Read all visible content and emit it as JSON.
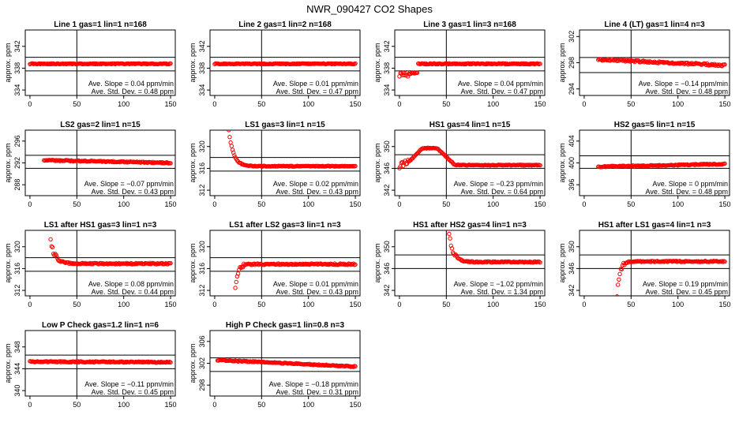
{
  "page_title": "NWR_090427  CO2 Shapes",
  "ylabel": "approx. ppm",
  "xticks": [
    0,
    50,
    100,
    150
  ],
  "colors": {
    "points": "#ff0000",
    "lines": "#000000"
  },
  "panels": [
    {
      "title": "Line 1 gas=1 lin=1 n=168",
      "yticks": [
        334,
        338,
        342
      ],
      "yrange": [
        333,
        345
      ],
      "hlines": [
        337.5,
        340
      ],
      "vline": 50,
      "slope": "0.04",
      "std": "0.48",
      "shape": "flat",
      "y_start": 338.8,
      "y_end": 338.8,
      "x_start": 0,
      "noise": 0.15,
      "scatter": 0.05
    },
    {
      "title": "Line 2 gas=1 lin=2 n=168",
      "yticks": [
        334,
        338,
        342
      ],
      "yrange": [
        333,
        345
      ],
      "hlines": [
        337.5,
        340
      ],
      "vline": 50,
      "slope": "0.01",
      "std": "0.47",
      "shape": "flat",
      "y_start": 338.8,
      "y_end": 338.8,
      "x_start": 0,
      "noise": 0.15,
      "scatter": 0.05
    },
    {
      "title": "Line 3 gas=1 lin=3 n=168",
      "yticks": [
        334,
        338,
        342
      ],
      "yrange": [
        333,
        345
      ],
      "hlines": [
        337.5,
        340
      ],
      "vline": 50,
      "slope": "0.04",
      "std": "0.47",
      "shape": "dip",
      "y_start": 336.8,
      "y_end": 338.8,
      "x_start": 0,
      "noise": 0.2,
      "scatter": 0.3
    },
    {
      "title": "Line 4 (LT) gas=1 lin=4 n=3",
      "yticks": [
        294,
        298,
        302
      ],
      "yrange": [
        293,
        303
      ],
      "hlines": [
        296.5,
        298.8
      ],
      "vline": 50,
      "slope": "−0.14",
      "std": "0.48",
      "shape": "flat",
      "y_start": 298.5,
      "y_end": 297.6,
      "x_start": 15,
      "noise": 0.3,
      "scatter": 0.25
    },
    {
      "title": "LS2 gas=2 lin=1 n=15",
      "yticks": [
        288,
        292,
        296
      ],
      "yrange": [
        286,
        298
      ],
      "hlines": [
        291,
        293.4
      ],
      "vline": 50,
      "slope": "−0.07",
      "std": "0.43",
      "shape": "flat",
      "y_start": 292.5,
      "y_end": 292.0,
      "x_start": 15,
      "noise": 0.2,
      "scatter": 0.1
    },
    {
      "title": "LS1 gas=3 lin=1 n=15",
      "yticks": [
        312,
        316,
        320
      ],
      "yrange": [
        311,
        323
      ],
      "hlines": [
        315.5,
        318
      ],
      "vline": 50,
      "slope": "0.02",
      "std": "0.43",
      "shape": "decay",
      "y_start": 323,
      "y_end": 316.4,
      "x_start": 15,
      "noise": 0.15,
      "scatter": 0.1
    },
    {
      "title": "HS1 gas=4 lin=1 n=15",
      "yticks": [
        342,
        346,
        350
      ],
      "yrange": [
        341,
        353
      ],
      "hlines": [
        346,
        348.5
      ],
      "vline": 50,
      "slope": "−0.23",
      "std": "0.64",
      "shape": "bump",
      "y_start": 347,
      "y_end": 347,
      "x_start": 0,
      "noise": 0.15,
      "scatter": 0.25
    },
    {
      "title": "HS2 gas=5 lin=1 n=15",
      "yticks": [
        396,
        400,
        404
      ],
      "yrange": [
        394,
        406
      ],
      "hlines": [
        399,
        401.3
      ],
      "vline": 50,
      "slope": "0",
      "std": "0.48",
      "shape": "flat",
      "y_start": 399.3,
      "y_end": 399.8,
      "x_start": 15,
      "noise": 0.2,
      "scatter": 0.1
    },
    {
      "title": "LS1 after HS1 gas=3 lin=1 n=3",
      "yticks": [
        312,
        316,
        320
      ],
      "yrange": [
        311,
        323
      ],
      "hlines": [
        315.5,
        318
      ],
      "vline": 50,
      "slope": "0.08",
      "std": "0.44",
      "shape": "decay",
      "y_start": 321,
      "y_end": 316.9,
      "x_start": 22,
      "noise": 0.25,
      "scatter": 0.2
    },
    {
      "title": "LS1 after LS2 gas=3 lin=1 n=3",
      "yticks": [
        312,
        316,
        320
      ],
      "yrange": [
        311,
        323
      ],
      "hlines": [
        315.5,
        318
      ],
      "vline": 50,
      "slope": "0.01",
      "std": "0.43",
      "shape": "rise",
      "y_start": 312.5,
      "y_end": 316.8,
      "x_start": 22,
      "noise": 0.25,
      "scatter": 0.15
    },
    {
      "title": "HS1 after HS2 gas=4 lin=1 n=3",
      "yticks": [
        342,
        346,
        350
      ],
      "yrange": [
        341,
        353
      ],
      "hlines": [
        346,
        348.5
      ],
      "vline": 50,
      "slope": "−1.02",
      "std": "1.34",
      "shape": "decay",
      "y_start": 353,
      "y_end": 347.2,
      "x_start": 52,
      "noise": 0.2,
      "scatter": 0.2
    },
    {
      "title": "HS1 after LS1 gas=4 lin=1 n=3",
      "yticks": [
        342,
        346,
        350
      ],
      "yrange": [
        341,
        353
      ],
      "hlines": [
        346,
        348.5
      ],
      "vline": 50,
      "slope": "0.19",
      "std": "0.45",
      "shape": "rise",
      "y_start": 341,
      "y_end": 347.3,
      "x_start": 35,
      "noise": 0.2,
      "scatter": 0.15
    },
    {
      "title": "Low P Check gas=1.2 lin=1 n=6",
      "yticks": [
        340,
        344,
        348
      ],
      "yrange": [
        339,
        351
      ],
      "hlines": [
        344,
        346.5
      ],
      "vline": 50,
      "slope": "−0.11",
      "std": "0.45",
      "shape": "flat",
      "y_start": 345.3,
      "y_end": 345.2,
      "x_start": 0,
      "noise": 0.2,
      "scatter": 0.15
    },
    {
      "title": "High P Check gas=1 lin=0.8 n=3",
      "yticks": [
        298,
        302,
        306
      ],
      "yrange": [
        296,
        308
      ],
      "hlines": [
        300.5,
        303
      ],
      "vline": 50,
      "slope": "−0.18",
      "std": "0.31",
      "shape": "flat",
      "y_start": 302.6,
      "y_end": 301.4,
      "x_start": 3,
      "noise": 0.2,
      "scatter": 0.2
    }
  ],
  "slope_label": "Ave. Slope =",
  "slope_unit": "ppm/min",
  "std_label": "Ave. Std. Dev. =",
  "std_unit": "ppm",
  "chart_data": {
    "type": "scatter",
    "title": "NWR_090427  CO2 Shapes",
    "xlabel": "",
    "ylabel": "approx. ppm",
    "xlim": [
      0,
      150
    ],
    "grid": false
  }
}
